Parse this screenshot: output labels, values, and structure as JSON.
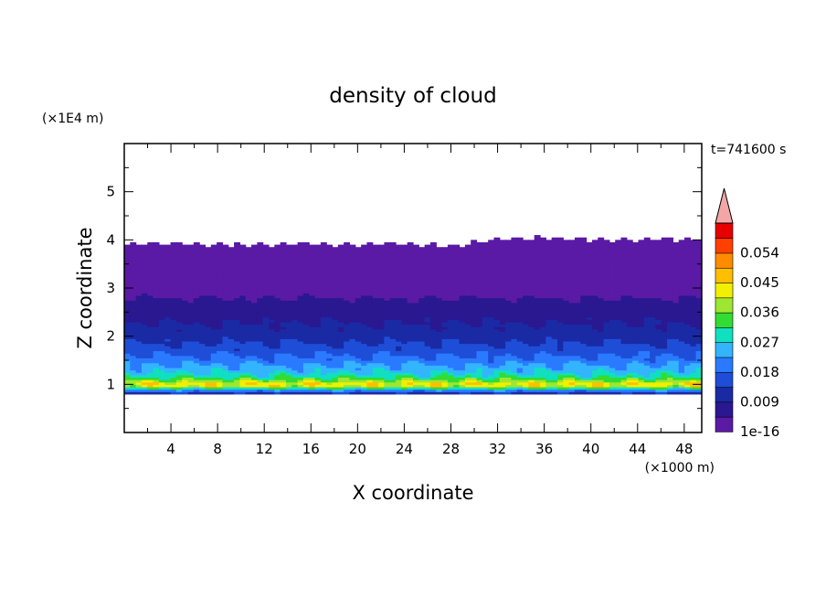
{
  "chart_data": {
    "type": "heatmap",
    "title": "density of cloud",
    "xlabel": "X coordinate",
    "ylabel": "Z coordinate",
    "x_unit": "(×1000 m)",
    "y_unit": "(×1E4 m)",
    "time_label": "t=741600 s",
    "xlim": [
      0,
      49.5
    ],
    "ylim": [
      0,
      6
    ],
    "x_ticks": [
      4,
      8,
      12,
      16,
      20,
      24,
      28,
      32,
      36,
      40,
      44,
      48
    ],
    "y_ticks": [
      1,
      2,
      3,
      4,
      5
    ],
    "grid": false,
    "colorbar": {
      "levels": [
        1e-16,
        0.0045,
        0.009,
        0.0135,
        0.018,
        0.0225,
        0.027,
        0.0315,
        0.036,
        0.0405,
        0.045,
        0.0495,
        0.054,
        0.0585
      ],
      "tick_labels": [
        "1e-16",
        "0.009",
        "0.018",
        "0.027",
        "0.036",
        "0.045",
        "0.054"
      ],
      "tick_values": [
        1e-16,
        0.009,
        0.018,
        0.027,
        0.036,
        0.045,
        0.054
      ],
      "colors": [
        "#5a1aa5",
        "#2a1890",
        "#1a2aa5",
        "#1e4ed8",
        "#2a7aff",
        "#33b4ff",
        "#10e0c0",
        "#32dc32",
        "#9ee632",
        "#f0f000",
        "#ffbe00",
        "#ff8c00",
        "#ff4000",
        "#e60000"
      ],
      "overflow_color": "#f4a6a6",
      "extend": "max"
    },
    "profile": {
      "z": [
        0.7,
        0.8,
        0.9,
        0.95,
        1.0,
        1.05,
        1.1,
        1.2,
        1.3,
        1.4,
        1.5,
        1.6,
        1.7,
        1.8,
        1.9,
        2.0,
        2.2,
        2.4,
        2.6,
        2.8,
        3.0,
        3.2,
        3.4,
        3.6,
        3.8,
        3.9,
        4.0
      ],
      "density": [
        0.0,
        0.009,
        0.024,
        0.038,
        0.045,
        0.041,
        0.035,
        0.029,
        0.025,
        0.023,
        0.02,
        0.018,
        0.016,
        0.0145,
        0.013,
        0.0115,
        0.0095,
        0.008,
        0.006,
        0.0045,
        0.003,
        0.002,
        0.0015,
        0.001,
        0.0007,
        0.0004,
        0.0
      ]
    },
    "cloud_top_z": [
      3.92,
      3.93,
      3.9,
      3.9,
      3.92,
      3.9,
      3.92,
      3.88,
      4.0,
      4.05,
      4.0,
      4.0,
      4.02
    ],
    "cloud_top_x": [
      0,
      4,
      8,
      12,
      16,
      20,
      24,
      28,
      32,
      36,
      40,
      44,
      49.5
    ],
    "cloud_base_z": 0.78
  }
}
